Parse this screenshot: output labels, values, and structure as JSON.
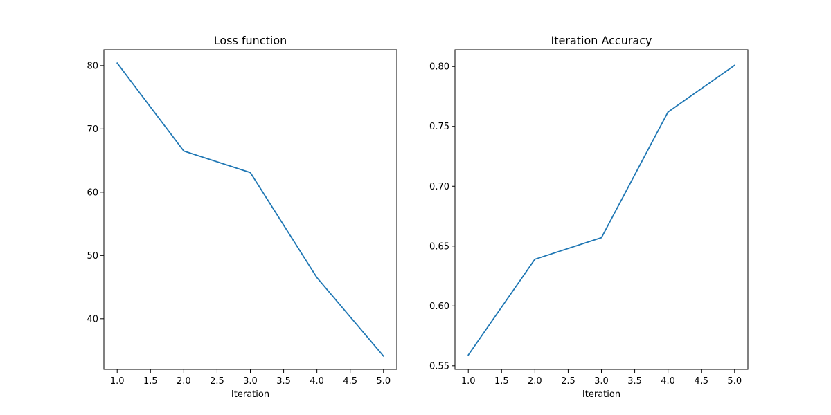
{
  "figure": {
    "background": "#ffffff",
    "line_color": "#1f77b4"
  },
  "chart_data": [
    {
      "type": "line",
      "title": "Loss function",
      "xlabel": "Iteration",
      "ylabel": "",
      "x": [
        1,
        2,
        3,
        4,
        5
      ],
      "series": [
        {
          "values": [
            80.4,
            66.5,
            63.1,
            46.5,
            34.1
          ]
        }
      ],
      "xlim": [
        0.8,
        5.2
      ],
      "ylim": [
        32,
        82.5
      ],
      "xticks": [
        1.0,
        1.5,
        2.0,
        2.5,
        3.0,
        3.5,
        4.0,
        4.5,
        5.0
      ],
      "xtick_labels": [
        "1.0",
        "1.5",
        "2.0",
        "2.5",
        "3.0",
        "3.5",
        "4.0",
        "4.5",
        "5.0"
      ],
      "yticks": [
        40,
        50,
        60,
        70,
        80
      ],
      "ytick_labels": [
        "40",
        "50",
        "60",
        "70",
        "80"
      ],
      "grid": false,
      "legend": "none"
    },
    {
      "type": "line",
      "title": "Iteration Accuracy",
      "xlabel": "Iteration",
      "ylabel": "",
      "x": [
        1,
        2,
        3,
        4,
        5
      ],
      "series": [
        {
          "values": [
            0.559,
            0.639,
            0.657,
            0.762,
            0.801
          ]
        }
      ],
      "xlim": [
        0.8,
        5.2
      ],
      "ylim": [
        0.547,
        0.814
      ],
      "xticks": [
        1.0,
        1.5,
        2.0,
        2.5,
        3.0,
        3.5,
        4.0,
        4.5,
        5.0
      ],
      "xtick_labels": [
        "1.0",
        "1.5",
        "2.0",
        "2.5",
        "3.0",
        "3.5",
        "4.0",
        "4.5",
        "5.0"
      ],
      "yticks": [
        0.55,
        0.6,
        0.65,
        0.7,
        0.75,
        0.8
      ],
      "ytick_labels": [
        "0.55",
        "0.60",
        "0.65",
        "0.70",
        "0.75",
        "0.80"
      ],
      "grid": false,
      "legend": "none"
    }
  ]
}
